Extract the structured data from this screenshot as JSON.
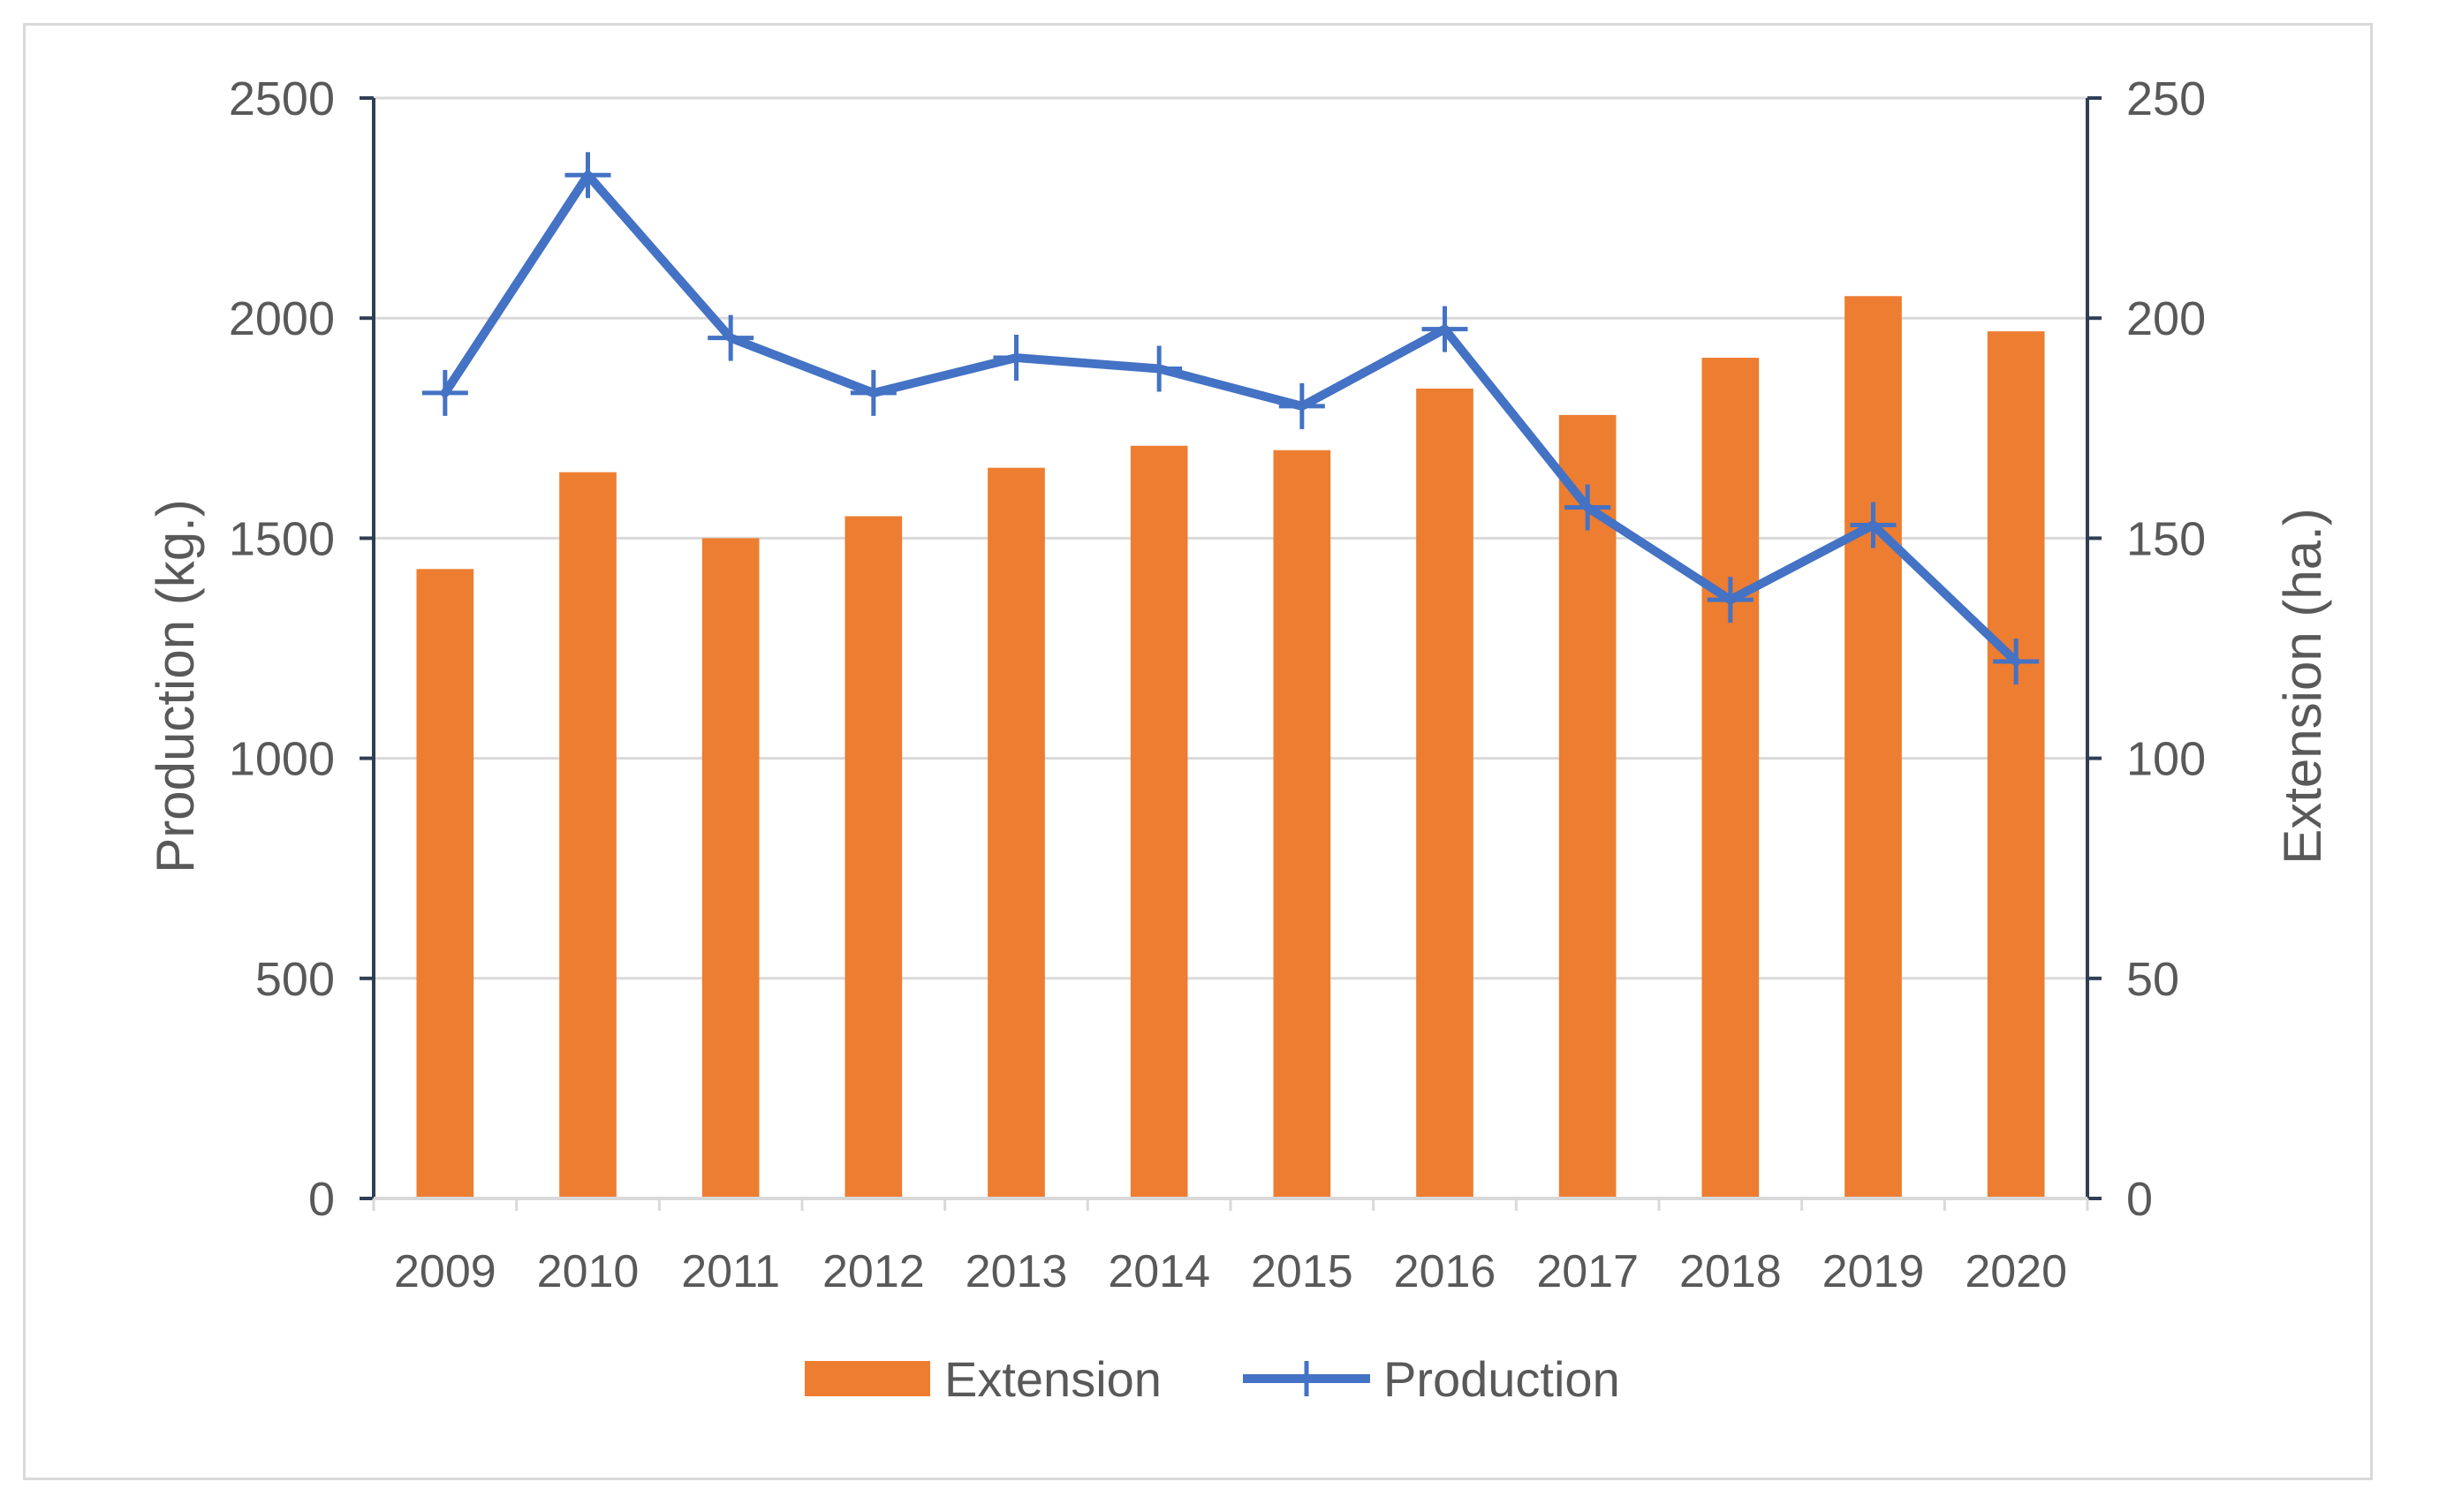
{
  "chart_data": {
    "type": "bar+line",
    "categories": [
      "2009",
      "2010",
      "2011",
      "2012",
      "2013",
      "2014",
      "2015",
      "2016",
      "2017",
      "2018",
      "2019",
      "2020"
    ],
    "series": [
      {
        "name": "Extension",
        "type": "bar",
        "axis": "right",
        "color": "#ed7d31",
        "values": [
          143,
          165,
          150,
          155,
          166,
          171,
          170,
          184,
          178,
          191,
          205,
          197
        ]
      },
      {
        "name": "Production",
        "type": "line",
        "axis": "left",
        "marker": "plus",
        "color": "#4472c4",
        "values": [
          1830,
          2325,
          1955,
          1830,
          1910,
          1885,
          1800,
          1975,
          1570,
          1360,
          1530,
          1220
        ]
      }
    ],
    "y_left": {
      "label": "Production (kg.)",
      "ylim": [
        0,
        2500
      ],
      "ticks": [
        "0",
        "500",
        "1000",
        "1500",
        "2000",
        "2500"
      ]
    },
    "y_right": {
      "label": "Extension (ha.)",
      "ylim": [
        0,
        250
      ],
      "ticks": [
        "0",
        "50",
        "100",
        "150",
        "200",
        "250"
      ]
    },
    "grid": true,
    "legend_position": "bottom"
  },
  "colors": {
    "bar": "#ed7d31",
    "line": "#4472c4",
    "axis": "#2f3e55",
    "grid": "#d9d9d9",
    "text": "#595959"
  }
}
